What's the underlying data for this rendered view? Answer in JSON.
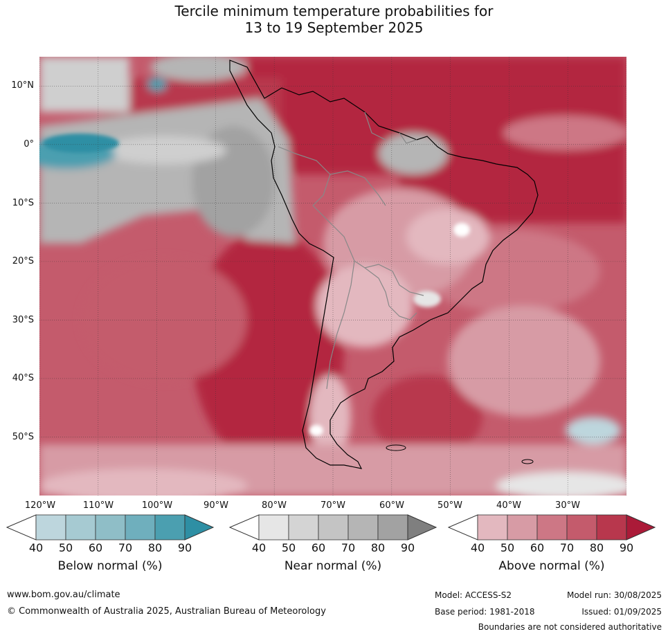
{
  "title": {
    "line1": "Tercile minimum temperature probabilities for",
    "line2": "13 to 19 September 2025"
  },
  "map": {
    "lat_labels": [
      "10°N",
      "0°",
      "10°S",
      "20°S",
      "30°S",
      "40°S",
      "50°S"
    ],
    "lon_labels": [
      "120°W",
      "110°W",
      "100°W",
      "90°W",
      "80°W",
      "70°W",
      "60°W",
      "50°W",
      "40°W",
      "30°W"
    ],
    "lat_range": [
      -60,
      15
    ],
    "lon_range": [
      -120,
      -20
    ]
  },
  "colorbars": [
    {
      "label": "Below normal (%)",
      "ticks": [
        "40",
        "50",
        "60",
        "70",
        "80",
        "90"
      ],
      "colors": [
        "#ffffff",
        "#bdd6dd",
        "#a6cad2",
        "#8fbec7",
        "#6fafbd",
        "#4b9fb0",
        "#2e8fa4"
      ]
    },
    {
      "label": "Near normal (%)",
      "ticks": [
        "40",
        "50",
        "60",
        "70",
        "80",
        "90"
      ],
      "colors": [
        "#ffffff",
        "#e6e6e6",
        "#d4d4d4",
        "#c4c4c4",
        "#b5b5b5",
        "#a2a2a2",
        "#7f7f7f"
      ]
    },
    {
      "label": "Above normal (%)",
      "ticks": [
        "40",
        "50",
        "60",
        "70",
        "80",
        "90"
      ],
      "colors": [
        "#ffffff",
        "#e3b8bf",
        "#d79ba5",
        "#cd7785",
        "#c45b6c",
        "#b8374d",
        "#ab1a38"
      ]
    }
  ],
  "footer": {
    "website": "www.bom.gov.au/climate",
    "copyright": "© Commonwealth of Australia 2025, Australian Bureau of Meteorology",
    "model": "Model: ACCESS-S2",
    "base_period": "Base period: 1981-2018",
    "model_run": "Model run: 30/08/2025",
    "issued": "Issued: 01/09/2025",
    "disclaimer": "Boundaries are not considered authoritative"
  }
}
